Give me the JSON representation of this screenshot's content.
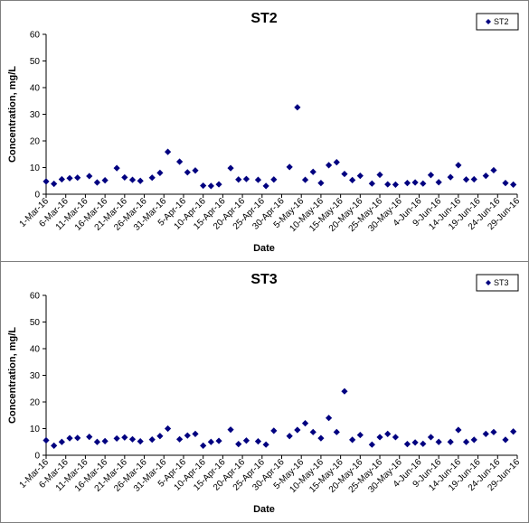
{
  "chart_data": [
    {
      "type": "scatter",
      "title": "ST2",
      "xlabel": "Date",
      "ylabel": "Concentration, mg/L",
      "ylim": [
        0,
        60
      ],
      "yticks": [
        "0",
        "10",
        "20",
        "30",
        "40",
        "50",
        "60"
      ],
      "grid": false,
      "legend_position": "top-right",
      "marker": "diamond",
      "color": "#000080",
      "x_tick_labels": [
        "1-Mar-16",
        "6-Mar-16",
        "11-Mar-16",
        "16-Mar-16",
        "21-Mar-16",
        "26-Mar-16",
        "31-Mar-16",
        "5-Apr-16",
        "10-Apr-16",
        "15-Apr-16",
        "20-Apr-16",
        "25-Apr-16",
        "30-Apr-16",
        "5-May-16",
        "10-May-16",
        "15-May-16",
        "20-May-16",
        "25-May-16",
        "30-May-16",
        "4-Jun-16",
        "9-Jun-16",
        "14-Jun-16",
        "19-Jun-16",
        "24-Jun-16",
        "29-Jun-16"
      ],
      "series": [
        {
          "name": "ST2",
          "x": [
            "1-Mar-16",
            "3-Mar-16",
            "5-Mar-16",
            "7-Mar-16",
            "9-Mar-16",
            "12-Mar-16",
            "14-Mar-16",
            "16-Mar-16",
            "19-Mar-16",
            "21-Mar-16",
            "23-Mar-16",
            "25-Mar-16",
            "28-Mar-16",
            "30-Mar-16",
            "1-Apr-16",
            "4-Apr-16",
            "6-Apr-16",
            "8-Apr-16",
            "10-Apr-16",
            "12-Apr-16",
            "14-Apr-16",
            "17-Apr-16",
            "19-Apr-16",
            "21-Apr-16",
            "24-Apr-16",
            "26-Apr-16",
            "28-Apr-16",
            "2-May-16",
            "4-May-16",
            "6-May-16",
            "8-May-16",
            "10-May-16",
            "12-May-16",
            "14-May-16",
            "16-May-16",
            "18-May-16",
            "20-May-16",
            "23-May-16",
            "25-May-16",
            "27-May-16",
            "29-May-16",
            "1-Jun-16",
            "3-Jun-16",
            "5-Jun-16",
            "7-Jun-16",
            "9-Jun-16",
            "12-Jun-16",
            "14-Jun-16",
            "16-Jun-16",
            "18-Jun-16",
            "21-Jun-16",
            "23-Jun-16",
            "26-Jun-16",
            "28-Jun-16"
          ],
          "y": [
            4.8,
            3.9,
            5.6,
            6,
            6.2,
            6.8,
            4.4,
            5.2,
            9.8,
            6.3,
            5.4,
            5,
            6.2,
            8,
            15.9,
            12.2,
            8.2,
            8.9,
            3.2,
            3.1,
            3.7,
            9.8,
            5.5,
            5.7,
            5.4,
            3.1,
            5.5,
            10.2,
            32.6,
            5.4,
            8.4,
            4.2,
            10.9,
            12,
            7.6,
            5.3,
            6.9,
            4,
            7.3,
            3.7,
            3.6,
            4.2,
            4.4,
            4,
            7.2,
            4.5,
            6.4,
            10.9,
            5.5,
            5.6,
            6.9,
            9,
            4.2,
            3.6
          ]
        }
      ]
    },
    {
      "type": "scatter",
      "title": "ST3",
      "xlabel": "Date",
      "ylabel": "Concentration, mg/L",
      "ylim": [
        0,
        60
      ],
      "yticks": [
        "0",
        "10",
        "20",
        "30",
        "40",
        "50",
        "60"
      ],
      "grid": false,
      "legend_position": "top-right",
      "marker": "diamond",
      "color": "#000080",
      "x_tick_labels": [
        "1-Mar-16",
        "6-Mar-16",
        "11-Mar-16",
        "16-Mar-16",
        "21-Mar-16",
        "26-Mar-16",
        "31-Mar-16",
        "5-Apr-16",
        "10-Apr-16",
        "15-Apr-16",
        "20-Apr-16",
        "25-Apr-16",
        "30-Apr-16",
        "5-May-16",
        "10-May-16",
        "15-May-16",
        "20-May-16",
        "25-May-16",
        "30-May-16",
        "4-Jun-16",
        "9-Jun-16",
        "14-Jun-16",
        "19-Jun-16",
        "24-Jun-16",
        "29-Jun-16"
      ],
      "series": [
        {
          "name": "ST3",
          "x": [
            "1-Mar-16",
            "3-Mar-16",
            "5-Mar-16",
            "7-Mar-16",
            "9-Mar-16",
            "12-Mar-16",
            "14-Mar-16",
            "16-Mar-16",
            "19-Mar-16",
            "21-Mar-16",
            "23-Mar-16",
            "25-Mar-16",
            "28-Mar-16",
            "30-Mar-16",
            "1-Apr-16",
            "4-Apr-16",
            "6-Apr-16",
            "8-Apr-16",
            "10-Apr-16",
            "12-Apr-16",
            "14-Apr-16",
            "17-Apr-16",
            "19-Apr-16",
            "21-Apr-16",
            "24-Apr-16",
            "26-Apr-16",
            "28-Apr-16",
            "2-May-16",
            "4-May-16",
            "6-May-16",
            "8-May-16",
            "10-May-16",
            "12-May-16",
            "14-May-16",
            "16-May-16",
            "18-May-16",
            "20-May-16",
            "23-May-16",
            "25-May-16",
            "27-May-16",
            "29-May-16",
            "1-Jun-16",
            "3-Jun-16",
            "5-Jun-16",
            "7-Jun-16",
            "9-Jun-16",
            "12-Jun-16",
            "14-Jun-16",
            "16-Jun-16",
            "18-Jun-16",
            "21-Jun-16",
            "23-Jun-16",
            "26-Jun-16",
            "28-Jun-16"
          ],
          "y": [
            5.6,
            3.6,
            5,
            6.4,
            6.5,
            6.9,
            5,
            5.3,
            6.3,
            6.7,
            6,
            5.2,
            5.9,
            7.2,
            10,
            6,
            7.4,
            8,
            3.6,
            5,
            5.4,
            9.6,
            4.2,
            5.5,
            5.2,
            4,
            9.2,
            7.2,
            9.5,
            12,
            8.7,
            6.4,
            14,
            8.7,
            24,
            5.8,
            7.6,
            4,
            6.8,
            8,
            6.8,
            4.2,
            4.8,
            4.3,
            6.8,
            5,
            5,
            9.5,
            5,
            5.8,
            8,
            8.7,
            5.8,
            8.9
          ]
        }
      ]
    }
  ]
}
